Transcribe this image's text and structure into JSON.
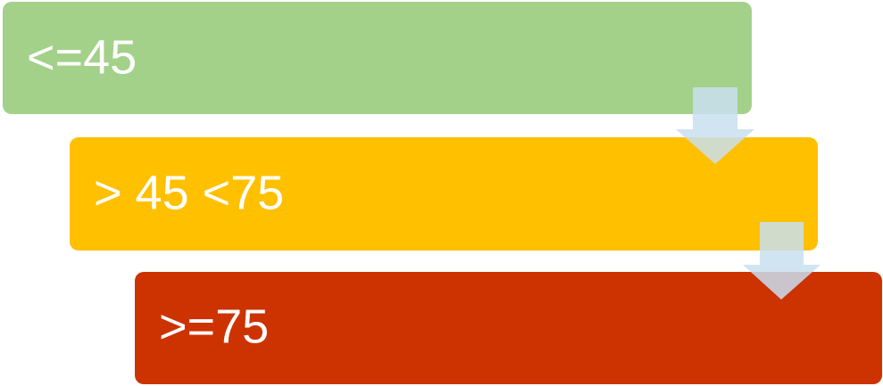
{
  "nodes": [
    {
      "label": "<=45"
    },
    {
      "label": "> 45 <75"
    },
    {
      "label": ">=75"
    }
  ]
}
